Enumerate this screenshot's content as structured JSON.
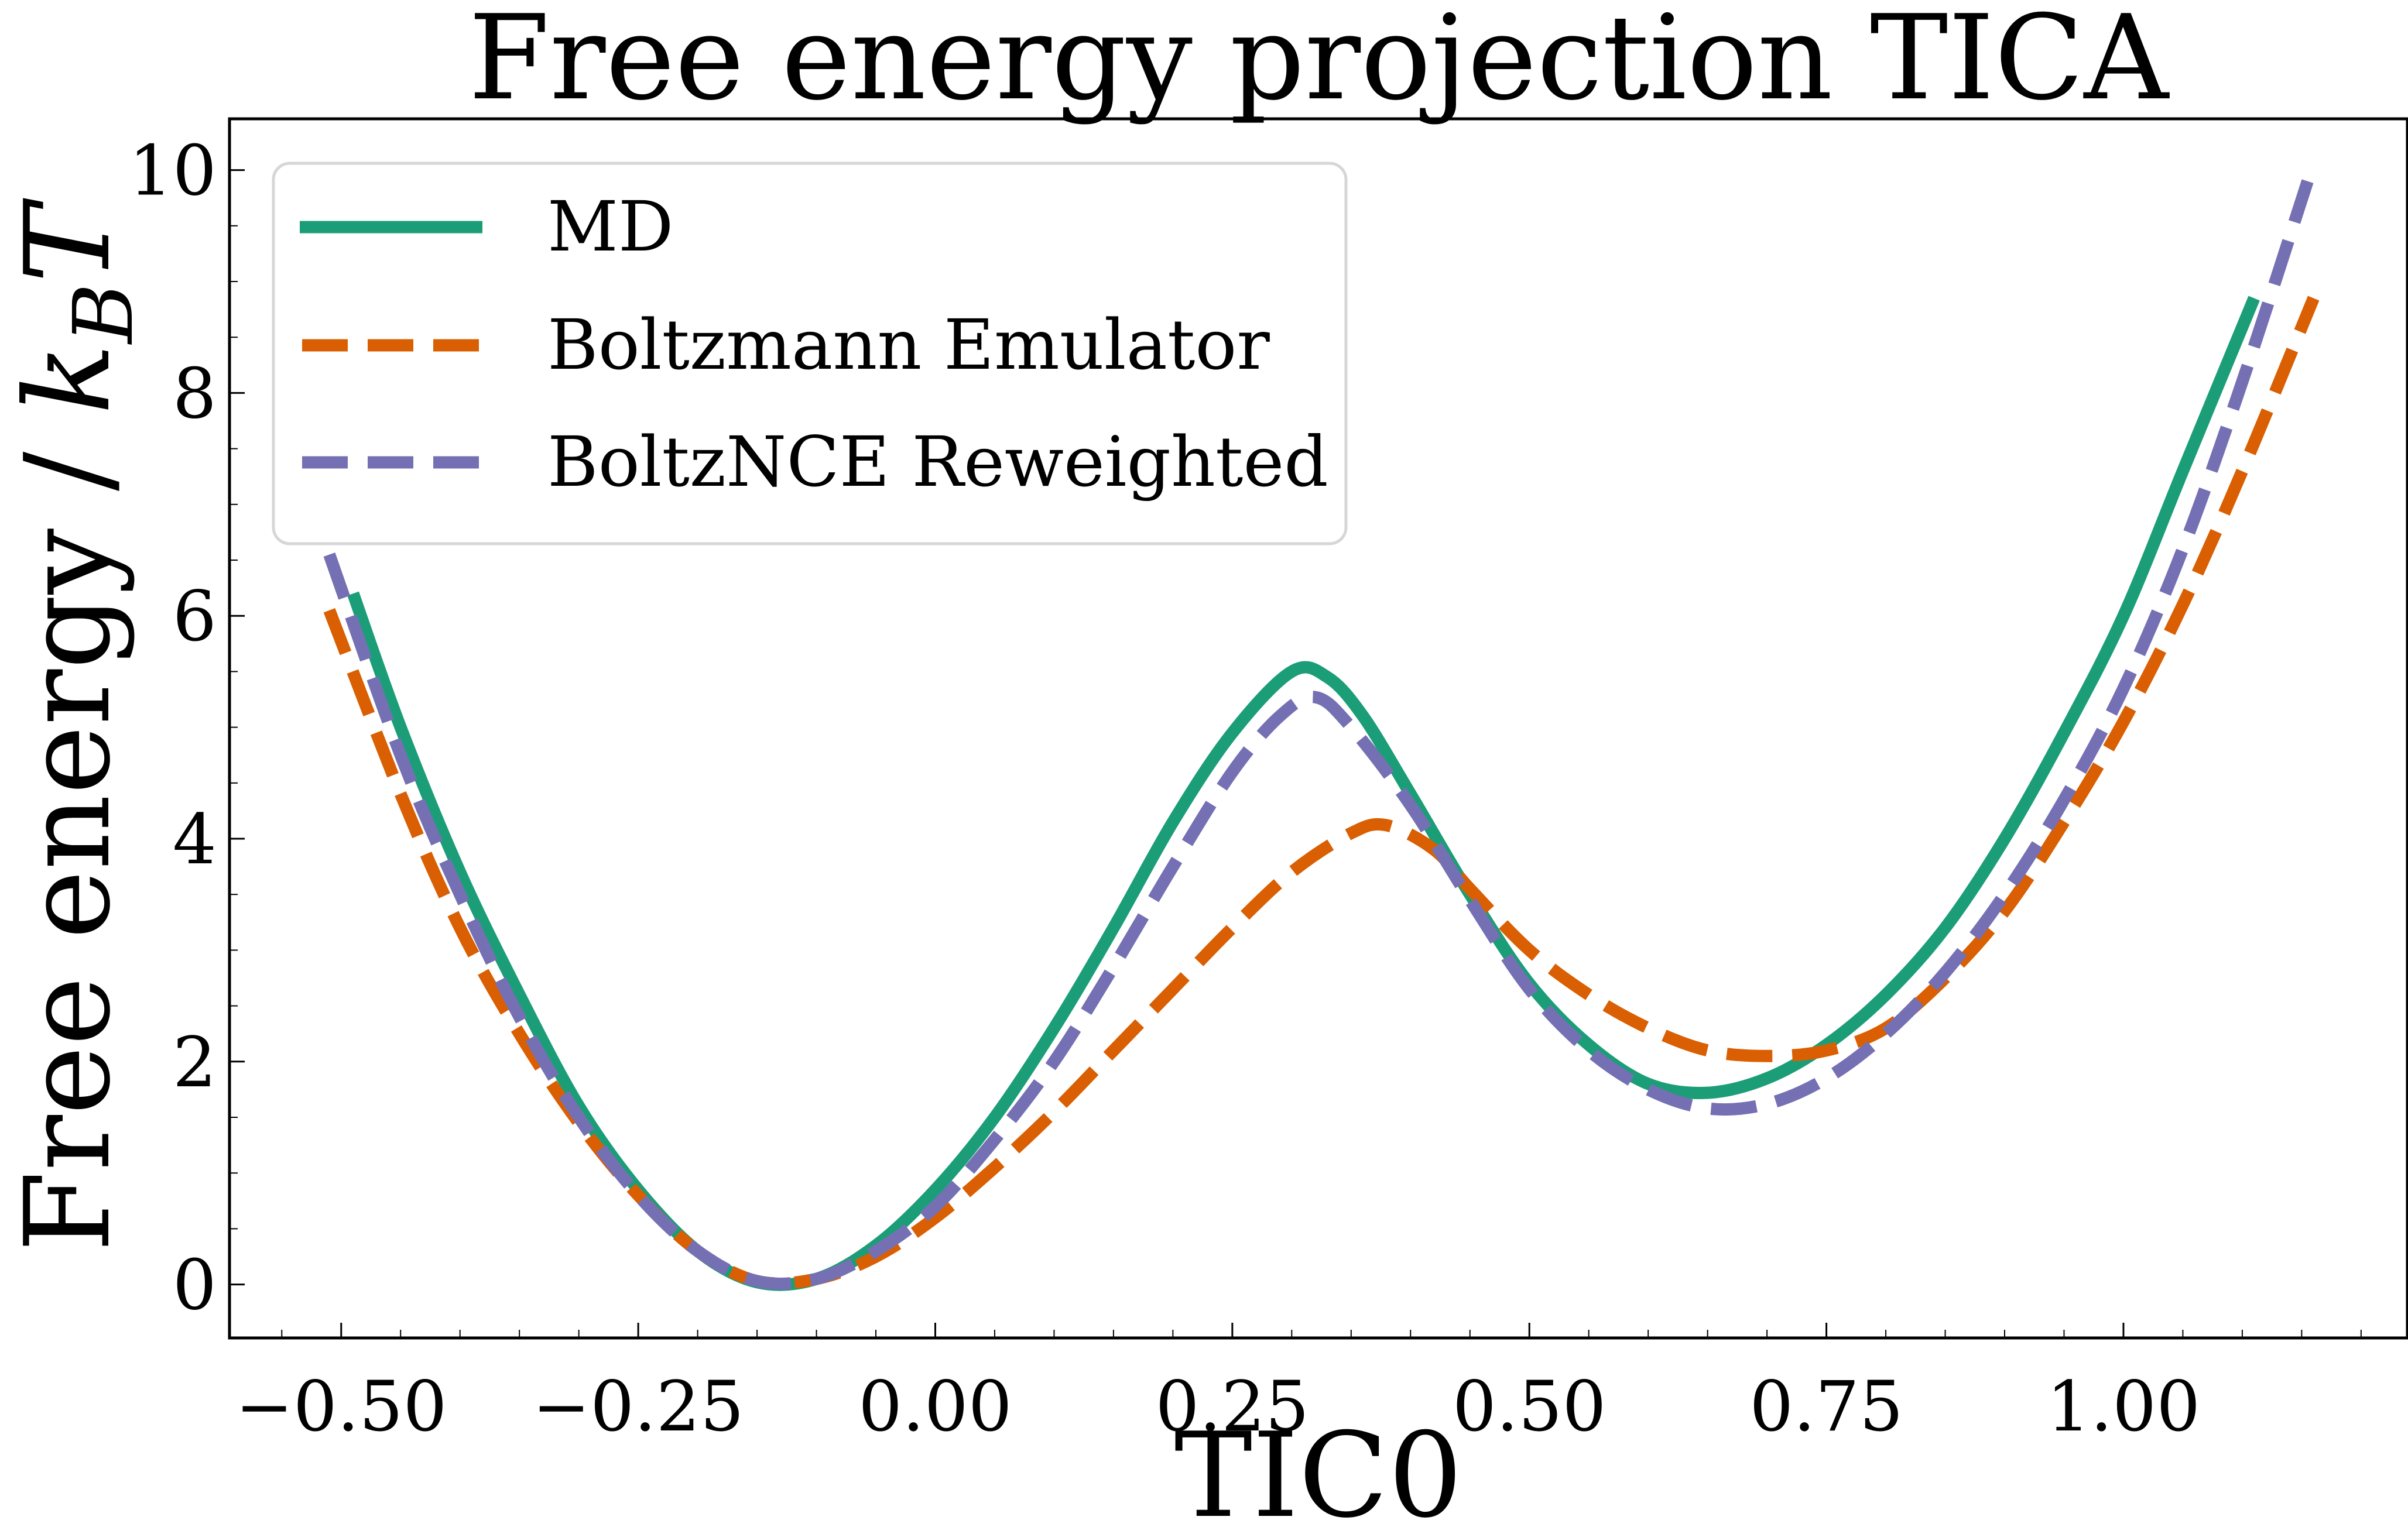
{
  "chart_data": {
    "type": "line",
    "title": "Free energy projection TICA",
    "xlabel": "TIC0",
    "ylabel": "Free energy / k_B T",
    "ylabel_parts": {
      "main": "Free energy / ",
      "k": "k",
      "sub": "B",
      "T": "T"
    },
    "xlim": [
      -0.594,
      1.239
    ],
    "ylim": [
      -0.48,
      10.46
    ],
    "xticks": [
      -0.5,
      -0.25,
      0.0,
      0.25,
      0.5,
      0.75,
      1.0
    ],
    "xtick_labels": [
      "−0.50",
      "−0.25",
      "0.00",
      "0.25",
      "0.50",
      "0.75",
      "1.00"
    ],
    "yticks": [
      0,
      2,
      4,
      6,
      8,
      10
    ],
    "ytick_labels": [
      "0",
      "2",
      "4",
      "6",
      "8",
      "10"
    ],
    "grid": false,
    "legend_position": "top-left",
    "series": [
      {
        "name": "MD",
        "color": "#1b9e77",
        "style": "solid",
        "x": [
          -0.49,
          -0.45,
          -0.4,
          -0.35,
          -0.3,
          -0.25,
          -0.2,
          -0.15,
          -0.1,
          -0.05,
          0.0,
          0.05,
          0.1,
          0.15,
          0.2,
          0.25,
          0.3,
          0.33,
          0.36,
          0.4,
          0.45,
          0.5,
          0.55,
          0.6,
          0.65,
          0.7,
          0.75,
          0.8,
          0.85,
          0.9,
          0.95,
          1.0,
          1.05,
          1.11
        ],
        "y": [
          6.2,
          5.0,
          3.7,
          2.6,
          1.6,
          0.85,
          0.3,
          0.02,
          0.05,
          0.35,
          0.85,
          1.5,
          2.3,
          3.2,
          4.15,
          4.95,
          5.5,
          5.45,
          5.1,
          4.4,
          3.5,
          2.7,
          2.15,
          1.8,
          1.72,
          1.85,
          2.15,
          2.6,
          3.2,
          4.0,
          4.95,
          6.0,
          7.3,
          8.85
        ]
      },
      {
        "name": "Boltzmann Emulator",
        "color": "#d95f02",
        "style": "dashed",
        "x": [
          -0.51,
          -0.45,
          -0.4,
          -0.35,
          -0.3,
          -0.25,
          -0.2,
          -0.15,
          -0.1,
          -0.05,
          0.0,
          0.05,
          0.1,
          0.15,
          0.2,
          0.25,
          0.3,
          0.35,
          0.38,
          0.42,
          0.45,
          0.5,
          0.55,
          0.6,
          0.65,
          0.7,
          0.75,
          0.8,
          0.85,
          0.9,
          0.95,
          1.0,
          1.05,
          1.1,
          1.16
        ],
        "y": [
          6.05,
          4.4,
          3.2,
          2.25,
          1.45,
          0.8,
          0.3,
          0.03,
          0.05,
          0.25,
          0.6,
          1.05,
          1.55,
          2.1,
          2.65,
          3.2,
          3.7,
          4.05,
          4.12,
          3.9,
          3.55,
          3.0,
          2.6,
          2.3,
          2.1,
          2.05,
          2.1,
          2.3,
          2.75,
          3.35,
          4.15,
          5.05,
          6.1,
          7.3,
          8.85
        ]
      },
      {
        "name": "BoltzNCE Reweighted",
        "color": "#7570b3",
        "style": "dashed",
        "x": [
          -0.51,
          -0.45,
          -0.4,
          -0.35,
          -0.3,
          -0.25,
          -0.2,
          -0.15,
          -0.1,
          -0.05,
          0.0,
          0.05,
          0.1,
          0.15,
          0.2,
          0.25,
          0.29,
          0.32,
          0.35,
          0.4,
          0.45,
          0.5,
          0.55,
          0.6,
          0.65,
          0.7,
          0.75,
          0.8,
          0.85,
          0.9,
          0.95,
          1.0,
          1.05,
          1.1,
          1.155
        ],
        "y": [
          6.55,
          4.75,
          3.5,
          2.4,
          1.5,
          0.8,
          0.3,
          0.03,
          0.05,
          0.3,
          0.7,
          1.3,
          2.0,
          2.85,
          3.75,
          4.6,
          5.1,
          5.27,
          5.0,
          4.3,
          3.45,
          2.65,
          2.1,
          1.75,
          1.58,
          1.62,
          1.85,
          2.25,
          2.8,
          3.5,
          4.35,
          5.35,
          6.6,
          8.1,
          9.9
        ]
      }
    ]
  }
}
